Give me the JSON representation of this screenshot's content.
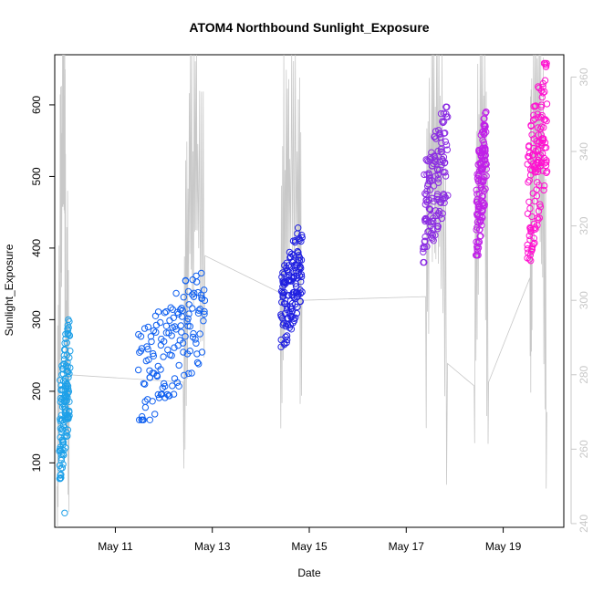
{
  "chart_data": {
    "type": "scatter",
    "title": "ATOM4 Northbound Sunlight_Exposure",
    "xlabel": "Date",
    "ylabel": "Sunlight_Exposure",
    "x_tick_labels": [
      "May 11",
      "May 13",
      "May 15",
      "May 17",
      "May 19"
    ],
    "x_tick_days": [
      11,
      13,
      15,
      17,
      19
    ],
    "xlim_days": [
      9.75,
      20.25
    ],
    "ylim": [
      10,
      670
    ],
    "y_ticks": [
      100,
      200,
      300,
      400,
      500,
      600
    ],
    "y_right_ticks": [
      240,
      260,
      280,
      300,
      320,
      340,
      360
    ],
    "y_right_lim": [
      239,
      366
    ],
    "right_axis_color": "#c8c8c8",
    "grid": false,
    "legend": "none",
    "series": [
      {
        "day_start": 9.85,
        "day_end": 10.06,
        "y_min": 78,
        "y_max": 300,
        "color": "#1ea0e8",
        "low_outlier": 30
      },
      {
        "day_start": 11.48,
        "day_end": 12.85,
        "y_min": 160,
        "y_max": 365,
        "color": "#1060f0"
      },
      {
        "day_start": 14.42,
        "day_end": 14.85,
        "y_min": 262,
        "y_max": 430,
        "color": "#2020e0"
      },
      {
        "day_start": 17.35,
        "day_end": 17.85,
        "y_min": 380,
        "y_max": 597,
        "color": "#8a2be2"
      },
      {
        "day_start": 18.45,
        "day_end": 18.65,
        "y_min": 390,
        "y_max": 590,
        "color": "#c020e8"
      },
      {
        "day_start": 19.5,
        "day_end": 19.9,
        "y_min": 380,
        "y_max": 658,
        "color": "#ff10d0"
      }
    ],
    "secondary_line": {
      "color": "#c8c8c8",
      "points": [
        [
          9.8,
          250
        ],
        [
          9.85,
          305
        ],
        [
          9.9,
          345
        ],
        [
          9.95,
          355
        ],
        [
          9.98,
          300
        ],
        [
          10.05,
          280
        ],
        [
          12.4,
          278
        ],
        [
          12.5,
          330
        ],
        [
          12.6,
          340
        ],
        [
          12.7,
          342
        ],
        [
          12.85,
          312
        ],
        [
          14.4,
          302
        ],
        [
          14.5,
          335
        ],
        [
          14.6,
          338
        ],
        [
          14.75,
          340
        ],
        [
          14.85,
          300
        ],
        [
          17.4,
          301
        ],
        [
          17.5,
          345
        ],
        [
          17.6,
          352
        ],
        [
          17.7,
          355
        ],
        [
          17.85,
          283
        ],
        [
          18.4,
          277
        ],
        [
          18.5,
          350
        ],
        [
          18.6,
          355
        ],
        [
          18.7,
          278
        ],
        [
          19.55,
          306
        ],
        [
          19.6,
          340
        ],
        [
          19.7,
          365
        ],
        [
          19.8,
          350
        ],
        [
          19.9,
          270
        ]
      ]
    }
  }
}
